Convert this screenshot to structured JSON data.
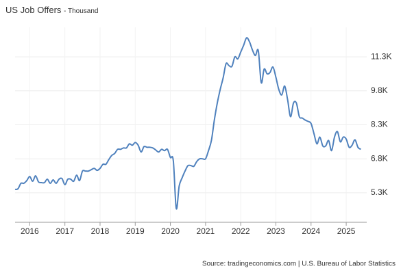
{
  "chart_data": {
    "type": "line",
    "title": "US Job Offers",
    "subtitle": "- Thousand",
    "source": "Source: tradingeconomics.com | U.S. Bureau of Labor Statistics",
    "x": [
      "2015-08",
      "2015-09",
      "2015-10",
      "2015-11",
      "2015-12",
      "2016-01",
      "2016-02",
      "2016-03",
      "2016-04",
      "2016-05",
      "2016-06",
      "2016-07",
      "2016-08",
      "2016-09",
      "2016-10",
      "2016-11",
      "2016-12",
      "2017-01",
      "2017-02",
      "2017-03",
      "2017-04",
      "2017-05",
      "2017-06",
      "2017-07",
      "2017-08",
      "2017-09",
      "2017-10",
      "2017-11",
      "2017-12",
      "2018-01",
      "2018-02",
      "2018-03",
      "2018-04",
      "2018-05",
      "2018-06",
      "2018-07",
      "2018-08",
      "2018-09",
      "2018-10",
      "2018-11",
      "2018-12",
      "2019-01",
      "2019-02",
      "2019-03",
      "2019-04",
      "2019-05",
      "2019-06",
      "2019-07",
      "2019-08",
      "2019-09",
      "2019-10",
      "2019-11",
      "2019-12",
      "2020-01",
      "2020-02",
      "2020-03",
      "2020-04",
      "2020-05",
      "2020-06",
      "2020-07",
      "2020-08",
      "2020-09",
      "2020-10",
      "2020-11",
      "2020-12",
      "2021-01",
      "2021-02",
      "2021-03",
      "2021-04",
      "2021-05",
      "2021-06",
      "2021-07",
      "2021-08",
      "2021-09",
      "2021-10",
      "2021-11",
      "2021-12",
      "2022-01",
      "2022-02",
      "2022-03",
      "2022-04",
      "2022-05",
      "2022-06",
      "2022-07",
      "2022-08",
      "2022-09",
      "2022-10",
      "2022-11",
      "2022-12",
      "2023-01",
      "2023-02",
      "2023-03",
      "2023-04",
      "2023-05",
      "2023-06",
      "2023-07",
      "2023-08",
      "2023-09",
      "2023-10",
      "2023-11",
      "2023-12",
      "2024-01",
      "2024-02",
      "2024-03",
      "2024-04",
      "2024-05",
      "2024-06",
      "2024-07",
      "2024-08",
      "2024-09",
      "2024-10",
      "2024-11",
      "2024-12",
      "2025-01",
      "2025-02",
      "2025-03",
      "2025-04",
      "2025-05",
      "2025-06"
    ],
    "series": [
      {
        "name": "Job Offers",
        "color": "#4f81bd",
        "values": [
          5450,
          5480,
          5720,
          5720,
          5840,
          6020,
          5810,
          6050,
          5780,
          5750,
          5750,
          5900,
          5720,
          5870,
          5720,
          5900,
          5930,
          5660,
          5900,
          5900,
          5810,
          6080,
          5840,
          6260,
          6260,
          6260,
          6320,
          6380,
          6290,
          6380,
          6560,
          6560,
          6770,
          6950,
          7040,
          7220,
          7220,
          7280,
          7280,
          7460,
          7400,
          7520,
          7400,
          7100,
          7340,
          7310,
          7310,
          7280,
          7190,
          7100,
          7220,
          7160,
          7220,
          6860,
          6710,
          4610,
          5600,
          5960,
          6260,
          6500,
          6500,
          6470,
          6680,
          6800,
          6800,
          6800,
          7160,
          7610,
          8510,
          9260,
          9860,
          10370,
          11000,
          10910,
          10880,
          11300,
          11210,
          11510,
          11810,
          12140,
          11960,
          11600,
          11360,
          11570,
          10160,
          10760,
          10550,
          10610,
          10850,
          10400,
          9860,
          9620,
          10010,
          9410,
          8660,
          9260,
          9260,
          8660,
          8600,
          8510,
          8450,
          8360,
          7910,
          7460,
          7760,
          7370,
          7370,
          7610,
          7160,
          7760,
          8000,
          7550,
          7760,
          7670,
          7310,
          7400,
          7640,
          7310,
          7220
        ]
      }
    ],
    "xlim": [
      "2015-08",
      "2025-08"
    ],
    "xticks": [
      {
        "value": "2016-01",
        "label": "2016"
      },
      {
        "value": "2017-01",
        "label": "2017"
      },
      {
        "value": "2018-01",
        "label": "2018"
      },
      {
        "value": "2019-01",
        "label": "2019"
      },
      {
        "value": "2020-01",
        "label": "2020"
      },
      {
        "value": "2021-01",
        "label": "2021"
      },
      {
        "value": "2022-01",
        "label": "2022"
      },
      {
        "value": "2023-01",
        "label": "2023"
      },
      {
        "value": "2024-01",
        "label": "2024"
      },
      {
        "value": "2025-01",
        "label": "2025"
      }
    ],
    "ylim": [
      4000,
      12600
    ],
    "yticks": [
      {
        "value": 5300,
        "label": "5.3K"
      },
      {
        "value": 6800,
        "label": "6.8K"
      },
      {
        "value": 8300,
        "label": "8.3K"
      },
      {
        "value": 9800,
        "label": "9.8K"
      },
      {
        "value": 11300,
        "label": "11.3K"
      }
    ],
    "grid": true
  }
}
